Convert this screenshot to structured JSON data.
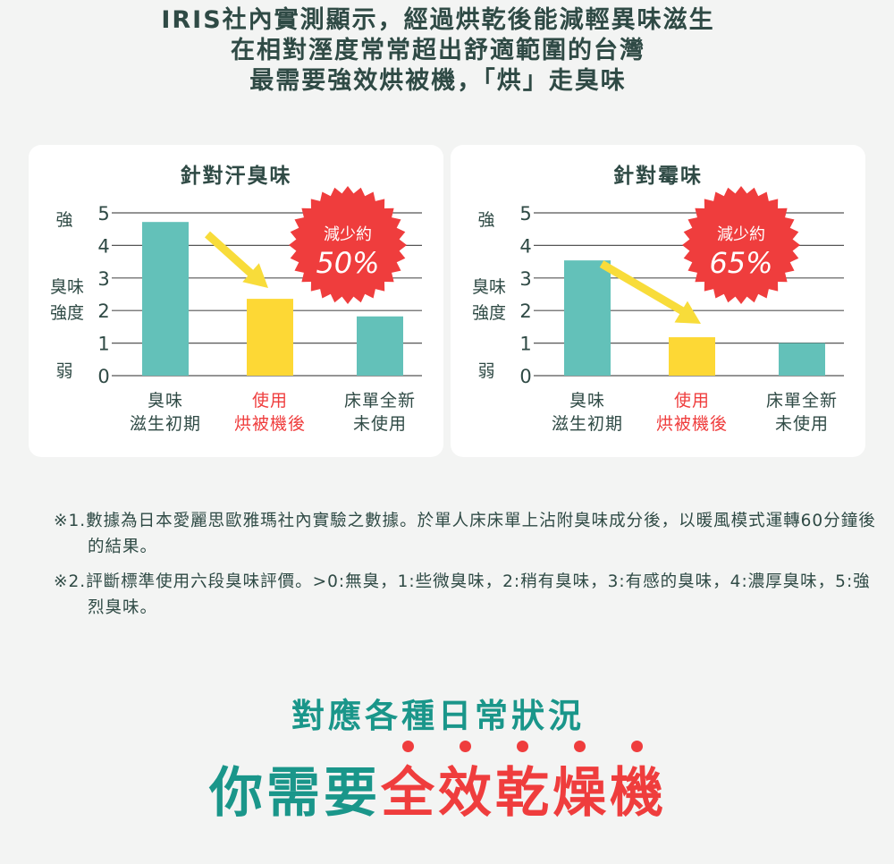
{
  "header": {
    "lines": [
      "IRIS社內實測顯示，經過烘乾後能減輕異味滋生",
      "在相對溼度常常超出舒適範圍的台灣",
      "最需要強效烘被機，「烘」走臭味"
    ]
  },
  "colors": {
    "teal": "#63c1b9",
    "yellow": "#fdd835",
    "red": "#ef3d3d",
    "text": "#2f4a45",
    "accent_green": "#1a968a"
  },
  "chart_data": [
    {
      "type": "bar",
      "title": "針對汗臭味",
      "ylim": [
        0,
        5
      ],
      "yticks": [
        "0",
        "1",
        "2",
        "3",
        "4",
        "5"
      ],
      "ylabel": {
        "strong": "強",
        "mid": [
          "臭味",
          "強度"
        ],
        "weak": "弱"
      },
      "categories": [
        [
          "臭味",
          "滋生初期"
        ],
        [
          "使用",
          "烘被機後"
        ],
        [
          "床單全新",
          "未使用"
        ]
      ],
      "values": [
        4.72,
        2.36,
        1.82
      ],
      "grid": true,
      "badge": {
        "top": "減少約",
        "value": "50%"
      }
    },
    {
      "type": "bar",
      "title": "針對霉味",
      "ylim": [
        0,
        5
      ],
      "yticks": [
        "0",
        "1",
        "2",
        "3",
        "4",
        "5"
      ],
      "ylabel": {
        "strong": "強",
        "mid": [
          "臭味",
          "強度"
        ],
        "weak": "弱"
      },
      "categories": [
        [
          "臭味",
          "滋生初期"
        ],
        [
          "使用",
          "烘被機後"
        ],
        [
          "床單全新",
          "未使用"
        ]
      ],
      "values": [
        3.54,
        1.18,
        1.0
      ],
      "grid": true,
      "badge": {
        "top": "減少約",
        "value": "65%"
      }
    }
  ],
  "notes": [
    "※1.數據為日本愛麗思歐雅瑪社內實驗之數據。於單人床床單上沾附臭味成分後，以暖風模式運轉60分鐘後的結果。",
    "※2.評斷標準使用六段臭味評價。>0:無臭，1:些微臭味，2:稍有臭味，3:有感的臭味，4:濃厚臭味，5:強烈臭味。"
  ],
  "footer": {
    "subtitle": "對應各種日常狀況",
    "prefix": "你需要",
    "emphasis": [
      "全",
      "效",
      "乾",
      "燥",
      "機"
    ]
  }
}
